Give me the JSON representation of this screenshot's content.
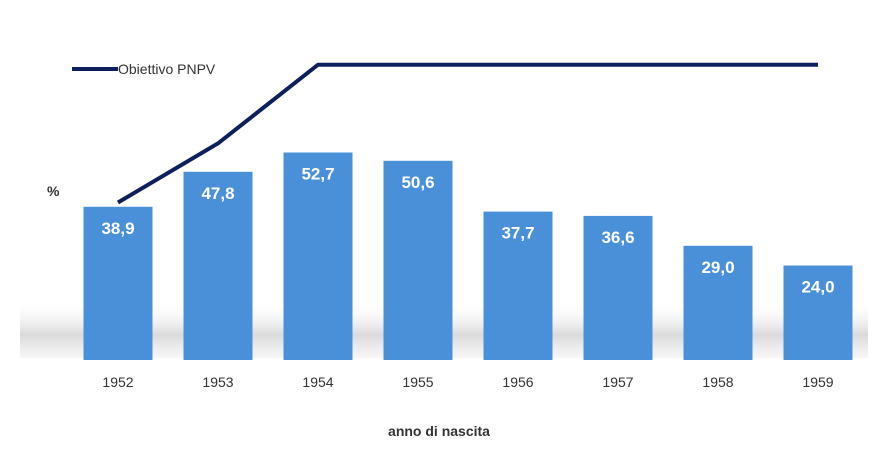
{
  "chart_data": {
    "type": "bar",
    "categories": [
      "1952",
      "1953",
      "1954",
      "1955",
      "1956",
      "1957",
      "1958",
      "1959"
    ],
    "values": [
      38.9,
      47.8,
      52.7,
      50.6,
      37.7,
      36.6,
      29.0,
      24.0
    ],
    "value_labels": [
      "38,9",
      "47,8",
      "52,7",
      "50,6",
      "37,7",
      "36,6",
      "29,0",
      "24,0"
    ],
    "line_series": {
      "name": "Obiettivo PNPV",
      "values": [
        40,
        55,
        75,
        75,
        75,
        75,
        75,
        75
      ]
    },
    "xlabel": "anno di nascita",
    "ylabel": "%",
    "ylim": [
      0,
      80
    ],
    "grid": false,
    "legend": "top-left",
    "colors": {
      "bar": "#4a90d9",
      "line": "#0d1f5c",
      "shadow": "#cfcfcf"
    }
  }
}
